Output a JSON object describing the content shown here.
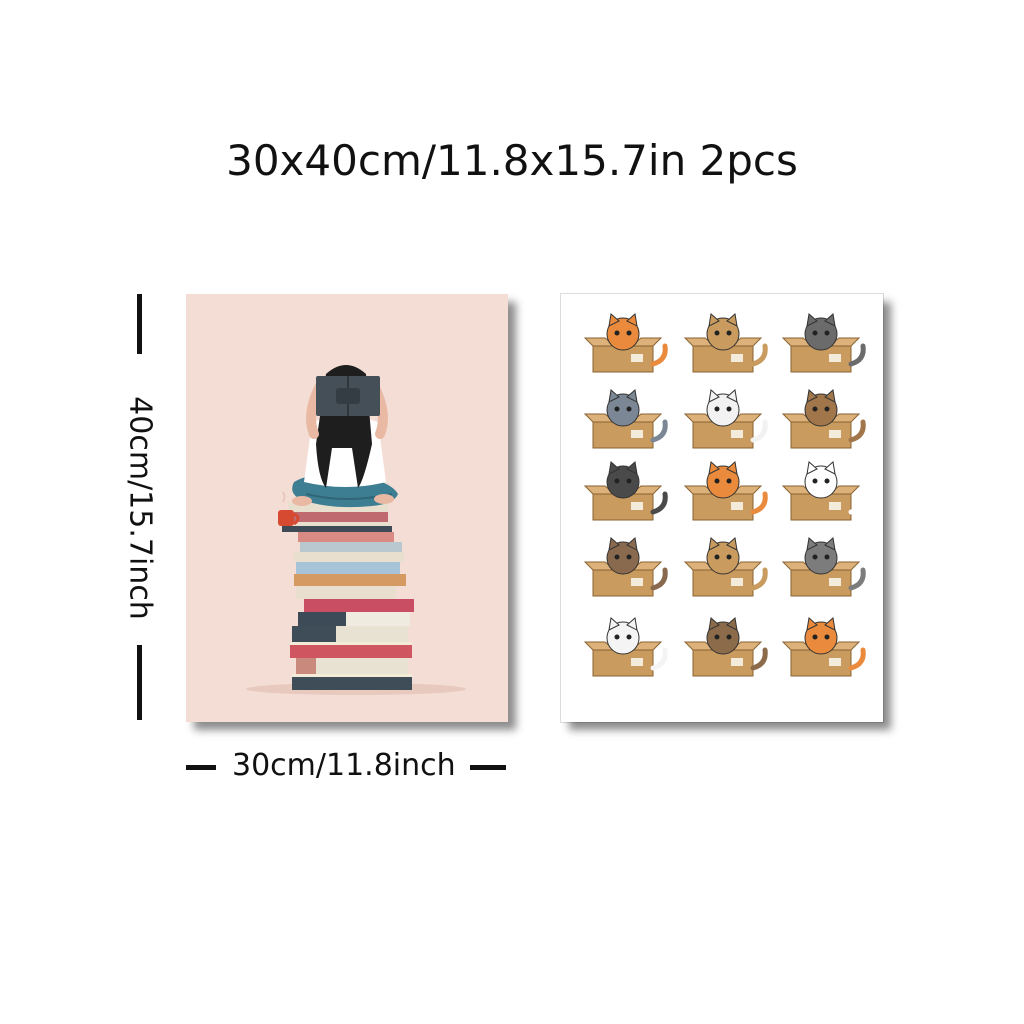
{
  "title": "30x40cm/11.8x15.7in 2pcs",
  "dimensions": {
    "height_label": "40cm/15.7inch",
    "width_label": "30cm/11.8inch"
  },
  "posters": [
    {
      "name": "girl-reading-on-books",
      "background": "#f4ddd4"
    },
    {
      "name": "cats-in-boxes",
      "background": "#ffffff"
    }
  ],
  "colors": {
    "text": "#111111",
    "cardboard": "#c99b5e",
    "orange_cat": "#e98a3c",
    "grey_cat": "#7b8794"
  }
}
